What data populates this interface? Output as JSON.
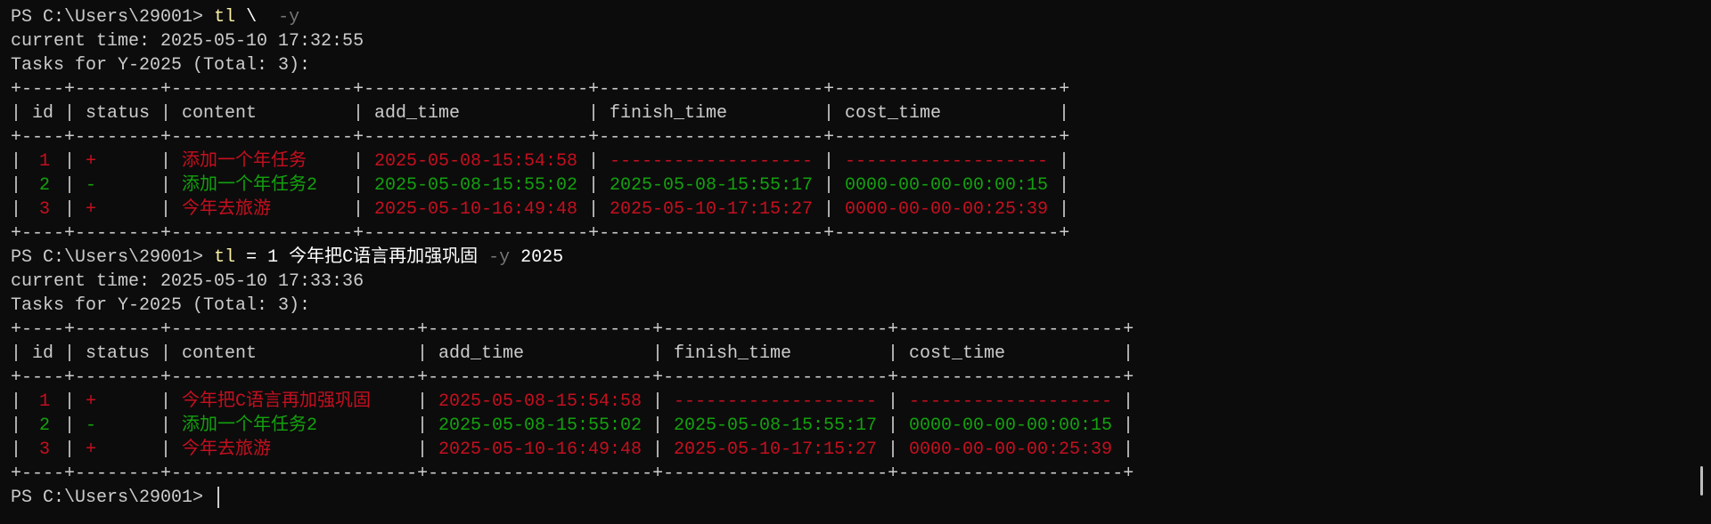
{
  "prompt": "PS C:\\Users\\29001>",
  "colors": {
    "pending": "#c50f1f",
    "done": "#13a10e",
    "text": "#cccccc",
    "command": "#f9f1a5",
    "flag": "#767676",
    "background": "#0c0c0c"
  },
  "sessions": [
    {
      "command": {
        "name": "tl",
        "args": " \\  ",
        "flag": "-y",
        "tail": ""
      },
      "current_time": "current time: 2025-05-10 17:32:55",
      "tasks_title": "Tasks for Y-2025 (Total: 3):",
      "headers": [
        "id",
        "status",
        "content",
        "add_time",
        "finish_time",
        "cost_time"
      ],
      "rows": [
        {
          "id": "1",
          "status": "+",
          "content": "添加一个年任务",
          "add_time": "2025-05-08-15:54:58",
          "finish_time": "-------------------",
          "cost_time": "-------------------"
        },
        {
          "id": "2",
          "status": "-",
          "content": "添加一个年任务2",
          "add_time": "2025-05-08-15:55:02",
          "finish_time": "2025-05-08-15:55:17",
          "cost_time": "0000-00-00-00:00:15"
        },
        {
          "id": "3",
          "status": "+",
          "content": "今年去旅游",
          "add_time": "2025-05-10-16:49:48",
          "finish_time": "2025-05-10-17:15:27",
          "cost_time": "0000-00-00-00:25:39"
        }
      ]
    },
    {
      "command": {
        "name": "tl",
        "args": " = 1 今年把C语言再加强巩固 ",
        "flag": "-y",
        "tail": " 2025"
      },
      "current_time": "current time: 2025-05-10 17:33:36",
      "tasks_title": "Tasks for Y-2025 (Total: 3):",
      "headers": [
        "id",
        "status",
        "content",
        "add_time",
        "finish_time",
        "cost_time"
      ],
      "rows": [
        {
          "id": "1",
          "status": "+",
          "content": "今年把C语言再加强巩固",
          "add_time": "2025-05-08-15:54:58",
          "finish_time": "-------------------",
          "cost_time": "-------------------"
        },
        {
          "id": "2",
          "status": "-",
          "content": "添加一个年任务2",
          "add_time": "2025-05-08-15:55:02",
          "finish_time": "2025-05-08-15:55:17",
          "cost_time": "0000-00-00-00:00:15"
        },
        {
          "id": "3",
          "status": "+",
          "content": "今年去旅游",
          "add_time": "2025-05-10-16:49:48",
          "finish_time": "2025-05-10-17:15:27",
          "cost_time": "0000-00-00-00:25:39"
        }
      ]
    }
  ]
}
